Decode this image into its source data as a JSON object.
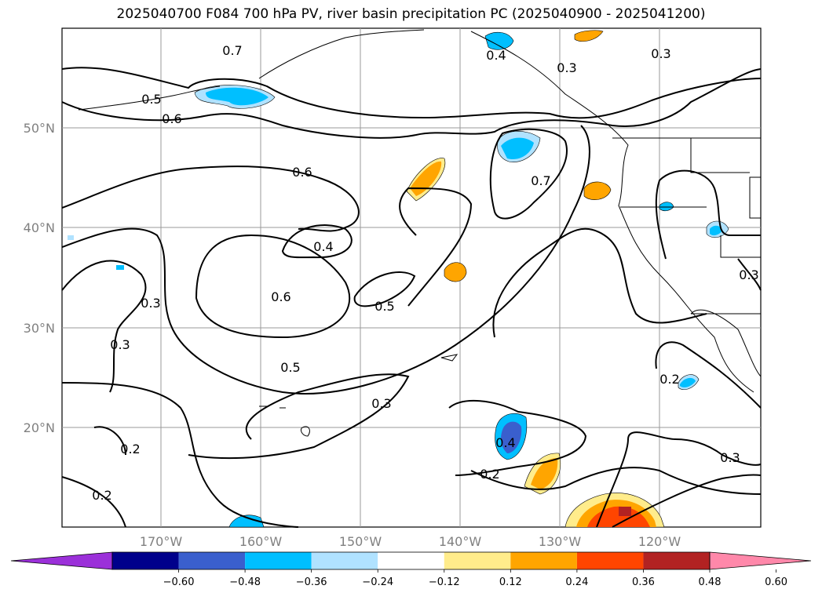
{
  "title": "2025040700 F084 700 hPa PV, river basin precipitation PC (2025040900 - 2025041200)",
  "lat_labels": [
    "50°N",
    "40°N",
    "30°N",
    "20°N"
  ],
  "lon_labels": [
    "170°W",
    "160°W",
    "150°W",
    "140°W",
    "130°W",
    "120°W"
  ],
  "contour_labels": [
    "0.7",
    "0.5",
    "0.6",
    "0.6",
    "0.4",
    "0.3",
    "0.3",
    "0.2",
    "0.2",
    "0.6",
    "0.5",
    "0.5",
    "0.3",
    "0.4",
    "0.2",
    "0.7",
    "0.3",
    "0.3",
    "0.2",
    "0.3",
    "0.3",
    "0.4"
  ],
  "colorbar": {
    "ticks": [
      "−0.60",
      "−0.48",
      "−0.36",
      "−0.24",
      "−0.12",
      "0.12",
      "0.24",
      "0.36",
      "0.48",
      "0.60"
    ],
    "colors": [
      "#9b30d9",
      "#00008b",
      "#3a5fcd",
      "#00bfff",
      "#b0e2ff",
      "#ffffff",
      "#ffec8b",
      "#ffa500",
      "#ff4500",
      "#b22222",
      "#ff88aa"
    ]
  }
}
